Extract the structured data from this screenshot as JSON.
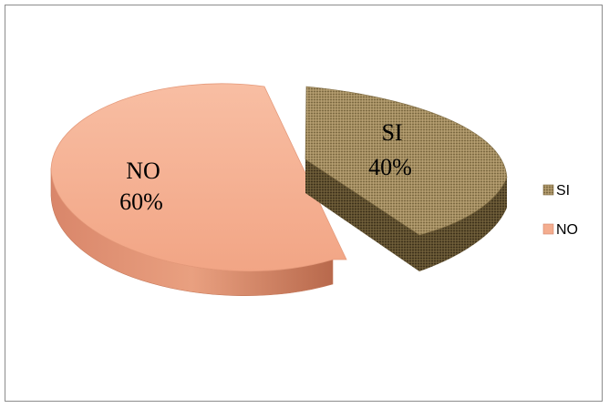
{
  "chart_data": {
    "type": "pie",
    "style": "3d-exploded",
    "categories": [
      "SI",
      "NO"
    ],
    "values": [
      40,
      60
    ],
    "data_labels": [
      {
        "category": "SI",
        "percent": "40%"
      },
      {
        "category": "NO",
        "percent": "60%"
      }
    ],
    "legend": {
      "position": "right",
      "entries": [
        "SI",
        "NO"
      ]
    },
    "colors": {
      "SI": "#a08a5c",
      "SI_side": "#5a4a2a",
      "NO": "#f6b192",
      "NO_side": "#c77a5a"
    }
  }
}
